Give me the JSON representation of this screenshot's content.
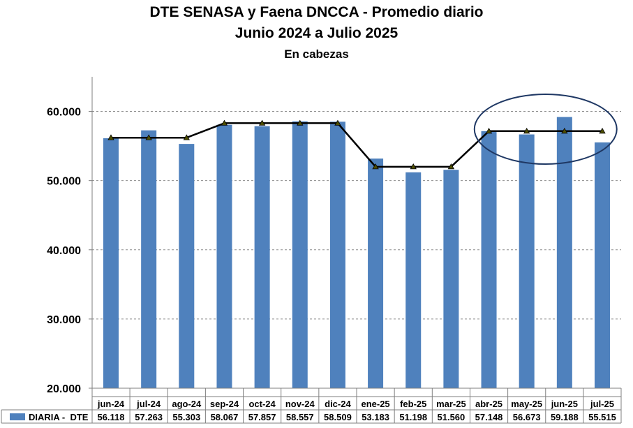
{
  "chart_data": {
    "type": "bar",
    "title": "DTE SENASA y Faena DNCCA - Promedio diario",
    "subtitle": "Junio 2024 a Julio 2025",
    "subtitle2": "En cabezas",
    "categories": [
      "jun-24",
      "jul-24",
      "ago-24",
      "sep-24",
      "oct-24",
      "nov-24",
      "dic-24",
      "ene-25",
      "feb-25",
      "mar-25",
      "abr-25",
      "may-25",
      "jun-25",
      "jul-25"
    ],
    "series": [
      {
        "name": "DIARIA -  DTE",
        "type": "bar",
        "values": [
          56118,
          57263,
          55303,
          58067,
          57857,
          58557,
          58509,
          53183,
          51198,
          51560,
          57148,
          56673,
          59188,
          55515
        ],
        "labels": [
          "56.118",
          "57.263",
          "55.303",
          "58.067",
          "57.857",
          "58.557",
          "58.509",
          "53.183",
          "51.198",
          "51.560",
          "57.148",
          "56.673",
          "59.188",
          "55.515"
        ]
      },
      {
        "type": "line",
        "values": [
          56200,
          56200,
          56200,
          58300,
          58300,
          58300,
          58300,
          52000,
          52000,
          52000,
          57150,
          57150,
          57150,
          57150
        ]
      }
    ],
    "ylim": [
      20000,
      65000
    ],
    "yticks": [
      20000,
      30000,
      40000,
      50000,
      60000
    ],
    "ytick_labels": [
      "20.000",
      "30.000",
      "40.000",
      "50.000",
      "60.000"
    ],
    "grid": true,
    "legend": "table-bottom",
    "annotation": "ellipse around abr-25 to jul-25",
    "colors": {
      "bar": "#4f81bd",
      "line": "#000000",
      "marker": "#4d4d00"
    }
  }
}
